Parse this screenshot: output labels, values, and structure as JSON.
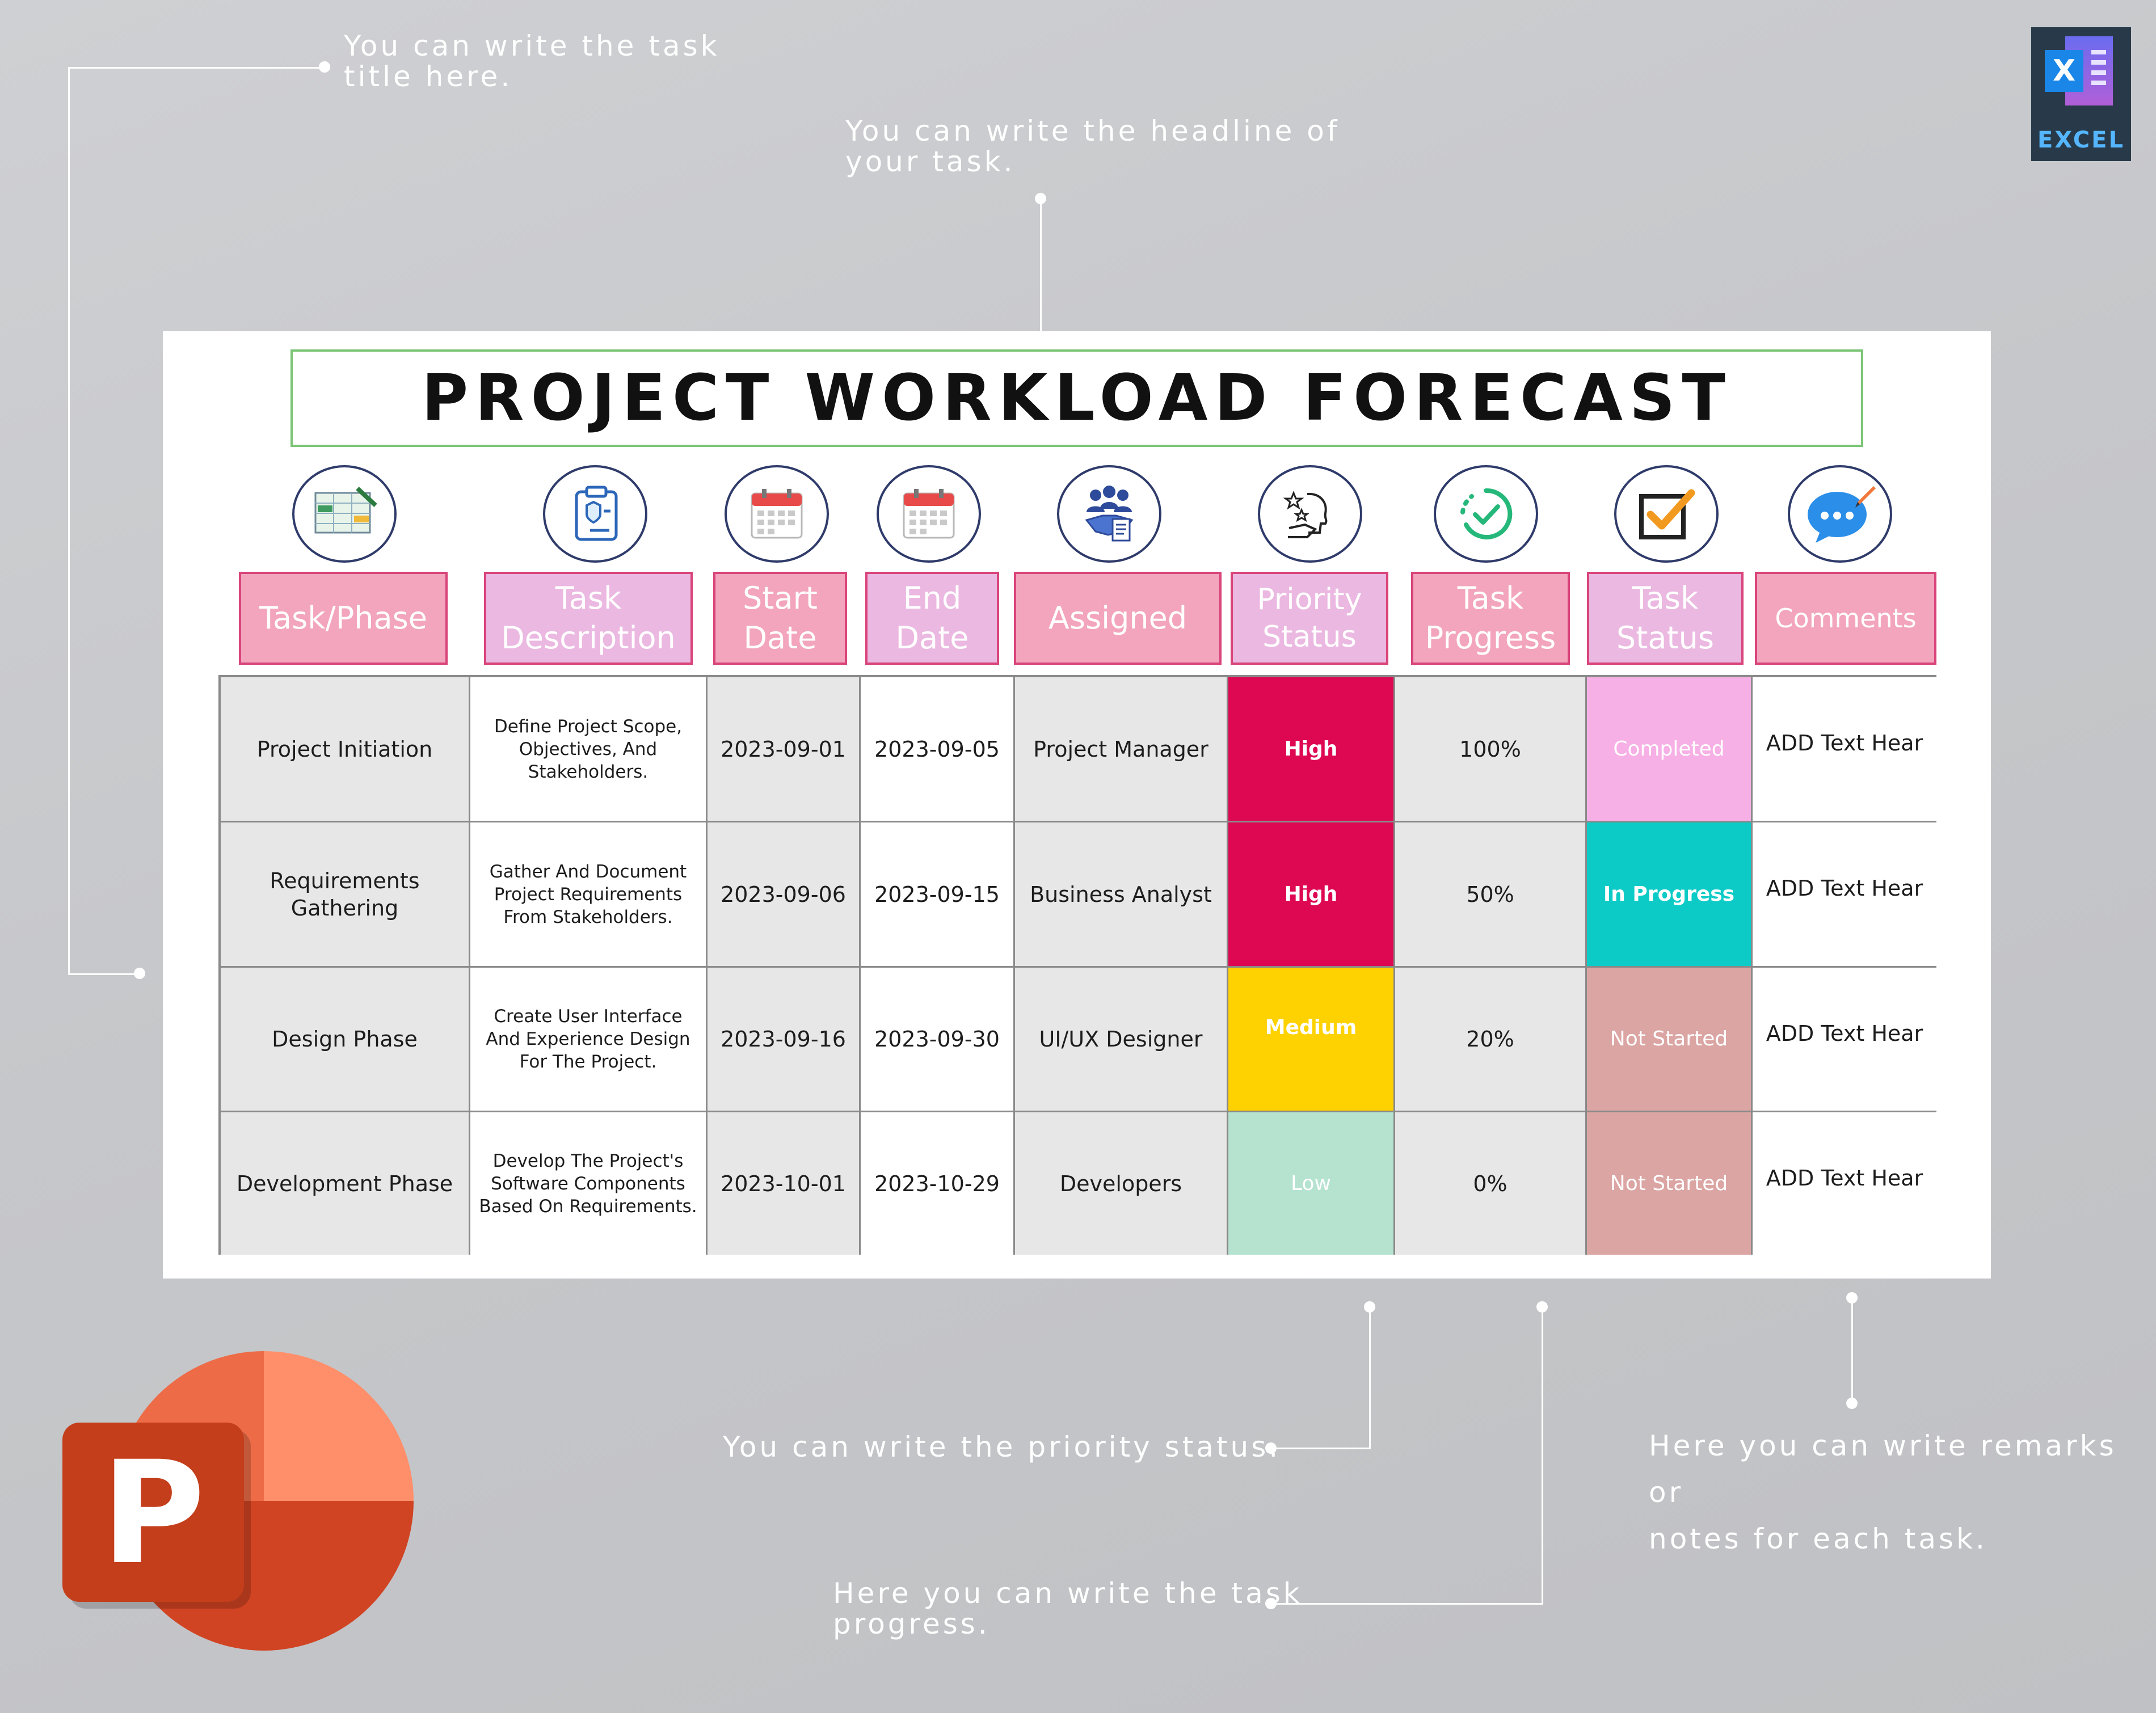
{
  "annotations": {
    "title_hint": "You can write the task\ntitle here.",
    "headline_hint": "You can write the headline of\nyour task.",
    "priority_hint": "You can write the priority status.",
    "progress_hint": "Here you can write the task\nprogress.",
    "comments_hint": "Here you can write remarks or\nnotes for each task."
  },
  "badge": {
    "excel_letter": "X",
    "excel_label": "EXCEL",
    "ppt_letter": "P"
  },
  "sheet": {
    "title": "PROJECT WORKLOAD FORECAST",
    "columns": [
      {
        "label": "Task/Phase",
        "icon": "spreadsheet-icon"
      },
      {
        "label": "Task\nDescription",
        "icon": "clipboard-shield-icon"
      },
      {
        "label": "Start\nDate",
        "icon": "calendar-icon"
      },
      {
        "label": "End\nDate",
        "icon": "calendar-icon"
      },
      {
        "label": "Assigned",
        "icon": "team-handshake-icon"
      },
      {
        "label": "Priority\nStatus",
        "icon": "priority-person-icon"
      },
      {
        "label": "Task\nProgress",
        "icon": "progress-check-icon"
      },
      {
        "label": "Task\nStatus",
        "icon": "checkbox-icon"
      },
      {
        "label": "Comments",
        "icon": "chat-bubble-icon"
      }
    ],
    "rows": [
      {
        "task": "Project Initiation",
        "description": "Define Project Scope,\nObjectives, And\nStakeholders.",
        "start": "2023-09-01",
        "end": "2023-09-05",
        "assigned": "Project Manager",
        "priority": "High",
        "priority_color": "#dd0752",
        "progress": "100%",
        "status": "Completed",
        "status_color": "#f6b0e5",
        "comments": "ADD Text Hear"
      },
      {
        "task": "Requirements\nGathering",
        "description": "Gather And Document\nProject Requirements\nFrom Stakeholders.",
        "start": "2023-09-06",
        "end": "2023-09-15",
        "assigned": "Business Analyst",
        "priority": "High",
        "priority_color": "#dd0752",
        "progress": "50%",
        "status": "In Progress",
        "status_color": "#0ccbc7",
        "comments": "ADD Text Hear"
      },
      {
        "task": "Design Phase",
        "description": "Create User Interface\nAnd Experience Design\nFor The Project.",
        "start": "2023-09-16",
        "end": "2023-09-30",
        "assigned": "UI/UX Designer",
        "priority": "Medium",
        "priority_color": "#fed200",
        "progress": "20%",
        "status": "Not Started",
        "status_color": "#dba5a3",
        "comments": "ADD Text Hear"
      },
      {
        "task": "Development Phase",
        "description": "Develop The Project's\nSoftware Components\nBased On Requirements.",
        "start": "2023-10-01",
        "end": "2023-10-29",
        "assigned": "Developers",
        "priority": "Low",
        "priority_color": "#b5e3d0",
        "progress": "0%",
        "status": "Not Started",
        "status_color": "#dba5a3",
        "comments": "ADD Text Hear"
      }
    ]
  }
}
